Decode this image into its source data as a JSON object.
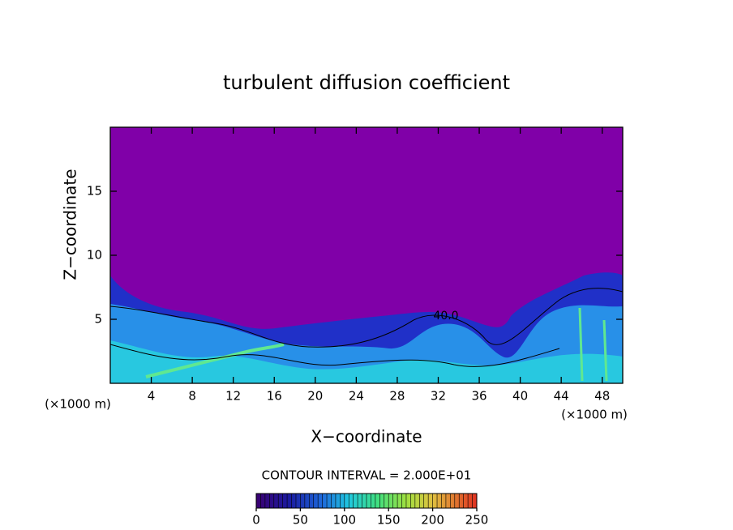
{
  "chart_data": {
    "type": "contour",
    "title": "turbulent diffusion coefficient",
    "xlabel": "X−coordinate",
    "ylabel": "Z−coordinate",
    "x_unit": "(×1000 m)",
    "y_unit": "(×1000 m)",
    "xlim": [
      0,
      50
    ],
    "xticks": [
      4,
      8,
      12,
      16,
      20,
      24,
      28,
      32,
      36,
      40,
      44,
      48
    ],
    "ylim": [
      0,
      20
    ],
    "yticks": [
      5,
      10,
      15
    ],
    "contour_interval_text": "CONTOUR INTERVAL = 2.000E+01",
    "contour_label": "40.0",
    "colorbar": {
      "clim": [
        0,
        250
      ],
      "ticks": [
        0,
        50,
        100,
        150,
        200,
        250
      ]
    }
  }
}
